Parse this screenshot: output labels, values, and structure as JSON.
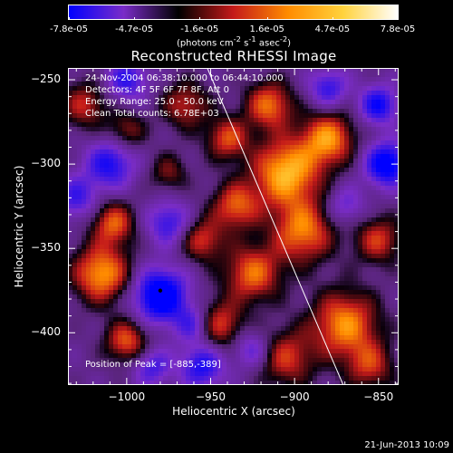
{
  "colorbar": {
    "tick_labels": [
      "-7.8e-05",
      "-4.7e-05",
      "-1.6e-05",
      "1.6e-05",
      "4.7e-05",
      "7.8e-05"
    ],
    "tick_values": [
      -7.8e-05,
      -4.7e-05,
      -1.6e-05,
      1.6e-05,
      4.7e-05,
      7.8e-05
    ],
    "range": [
      -7.8e-05,
      7.8e-05
    ],
    "units_html": "(photons cm<sup>-2</sup> s<sup>-1</sup> asec<sup>-2</sup>)",
    "colors": [
      "#0000ff",
      "#7a2cc8",
      "#000000",
      "#c41a1a",
      "#ff8c00",
      "#ffd23c",
      "#ffffff"
    ]
  },
  "chart_data": {
    "type": "heatmap",
    "title": "Reconstructed RHESSI Image",
    "xlabel": "Heliocentric X (arcsec)",
    "ylabel": "Heliocentric Y (arcsec)",
    "xlim": [
      -1035,
      -838
    ],
    "ylim": [
      -431,
      -243
    ],
    "x_ticks": [
      -1000,
      -950,
      -900,
      -850
    ],
    "y_ticks": [
      -250,
      -300,
      -350,
      -400
    ],
    "x_tick_labels": [
      "−1000",
      "−950",
      "−900",
      "−850"
    ],
    "y_tick_labels": [
      "−250",
      "−300",
      "−350",
      "−400"
    ],
    "annotations": [
      "24-Nov-2004 06:38:10.000 to 06:44:10.000",
      "Detectors: 4F 5F 6F 7F 8F, Att 0",
      "Energy Range: 25.0 - 50.0 keV",
      "Clean    Total counts: 6.78E+03"
    ],
    "peak_text": "Position of Peak = [-885,-389]",
    "peak_position": [
      -885,
      -389
    ],
    "marker_position": [
      -980,
      -375
    ],
    "limb_line": [
      [
        -952,
        -243
      ],
      [
        -871,
        -431
      ]
    ],
    "blobs": [
      {
        "x": -905,
        "y": -305,
        "v": 1.0,
        "s": 14
      },
      {
        "x": -880,
        "y": -285,
        "v": 0.85,
        "s": 11
      },
      {
        "x": -895,
        "y": -340,
        "v": 0.8,
        "s": 13
      },
      {
        "x": -870,
        "y": -395,
        "v": 0.85,
        "s": 14
      },
      {
        "x": -905,
        "y": -415,
        "v": 0.6,
        "s": 12
      },
      {
        "x": -945,
        "y": -395,
        "v": 0.65,
        "s": 10
      },
      {
        "x": -925,
        "y": -365,
        "v": 0.75,
        "s": 12
      },
      {
        "x": -935,
        "y": -325,
        "v": 0.7,
        "s": 10
      },
      {
        "x": -915,
        "y": -265,
        "v": 0.75,
        "s": 10
      },
      {
        "x": -940,
        "y": -285,
        "v": 0.65,
        "s": 9
      },
      {
        "x": -965,
        "y": -265,
        "v": 0.55,
        "s": 10
      },
      {
        "x": -1015,
        "y": -365,
        "v": 0.9,
        "s": 12
      },
      {
        "x": -1008,
        "y": -335,
        "v": 0.7,
        "s": 9
      },
      {
        "x": -1000,
        "y": -405,
        "v": 0.7,
        "s": 9
      },
      {
        "x": -1025,
        "y": -265,
        "v": 0.55,
        "s": 10
      },
      {
        "x": -955,
        "y": -345,
        "v": 0.6,
        "s": 9
      },
      {
        "x": -1000,
        "y": -280,
        "v": 0.45,
        "s": 8
      },
      {
        "x": -850,
        "y": -345,
        "v": 0.6,
        "s": 10
      },
      {
        "x": -855,
        "y": -420,
        "v": 0.55,
        "s": 10
      },
      {
        "x": -975,
        "y": -305,
        "v": 0.4,
        "s": 8
      },
      {
        "x": -980,
        "y": -378,
        "v": -1.0,
        "s": 11
      },
      {
        "x": -960,
        "y": -395,
        "v": -0.5,
        "s": 8
      },
      {
        "x": -845,
        "y": -300,
        "v": -0.9,
        "s": 9
      },
      {
        "x": -850,
        "y": -265,
        "v": -0.7,
        "s": 8
      },
      {
        "x": -1010,
        "y": -300,
        "v": -0.65,
        "s": 10
      },
      {
        "x": -1030,
        "y": -320,
        "v": -0.5,
        "s": 9
      },
      {
        "x": -975,
        "y": -335,
        "v": -0.55,
        "s": 9
      },
      {
        "x": -955,
        "y": -420,
        "v": -0.65,
        "s": 9
      },
      {
        "x": -925,
        "y": -410,
        "v": -0.45,
        "s": 8
      },
      {
        "x": -880,
        "y": -255,
        "v": -0.55,
        "s": 8
      },
      {
        "x": -1000,
        "y": -250,
        "v": -0.55,
        "s": 9
      },
      {
        "x": -870,
        "y": -325,
        "v": -0.4,
        "s": 8
      },
      {
        "x": -985,
        "y": -420,
        "v": -0.5,
        "s": 8
      }
    ]
  },
  "footer": {
    "timestamp": "21-Jun-2013 10:09"
  }
}
